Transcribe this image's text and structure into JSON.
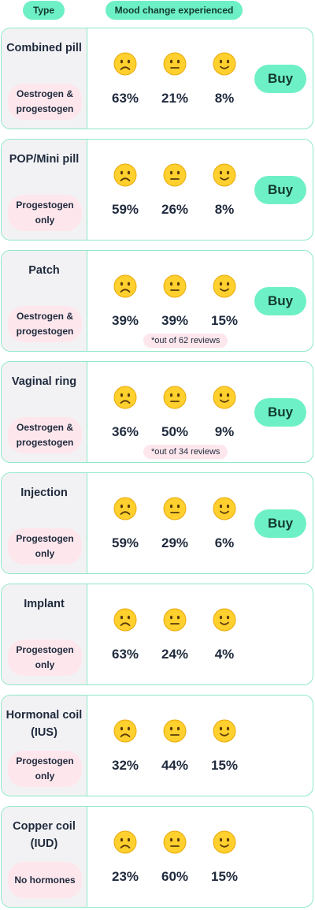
{
  "header": {
    "type_label": "Type",
    "mood_label": "Mood change experienced"
  },
  "icons": [
    "frowning-face-icon",
    "neutral-face-icon",
    "slightly-smiling-face-icon"
  ],
  "colors": {
    "accent": "#6ef0c6",
    "border": "#8ee8c8",
    "hormone_bg": "#fde7ec",
    "type_bg": "#f2f2f4"
  },
  "cards": [
    {
      "name": "Combined pill",
      "hormone": "Oestrogen & progestogen",
      "worse": "63%",
      "no_change": "21%",
      "better": "8%",
      "buy": "Buy"
    },
    {
      "name": "POP/Mini pill",
      "hormone": "Progestogen only",
      "worse": "59%",
      "no_change": "26%",
      "better": "8%",
      "buy": "Buy"
    },
    {
      "name": "Patch",
      "hormone": "Oestrogen & progestogen",
      "worse": "39%",
      "no_change": "39%",
      "better": "15%",
      "note": "*out of 62 reviews",
      "buy": "Buy"
    },
    {
      "name": "Vaginal ring",
      "hormone": "Oestrogen & progestogen",
      "worse": "36%",
      "no_change": "50%",
      "better": "9%",
      "note": "*out of 34 reviews",
      "buy": "Buy"
    },
    {
      "name": "Injection",
      "hormone": "Progestogen only",
      "worse": "59%",
      "no_change": "29%",
      "better": "6%",
      "buy": "Buy"
    },
    {
      "name": "Implant",
      "hormone": "Progestogen only",
      "worse": "63%",
      "no_change": "24%",
      "better": "4%"
    },
    {
      "name": "Hormonal coil (IUS)",
      "hormone": "Progestogen only",
      "worse": "32%",
      "no_change": "44%",
      "better": "15%"
    },
    {
      "name": "Copper coil (IUD)",
      "hormone": "No hormones",
      "worse": "23%",
      "no_change": "60%",
      "better": "15%"
    }
  ]
}
